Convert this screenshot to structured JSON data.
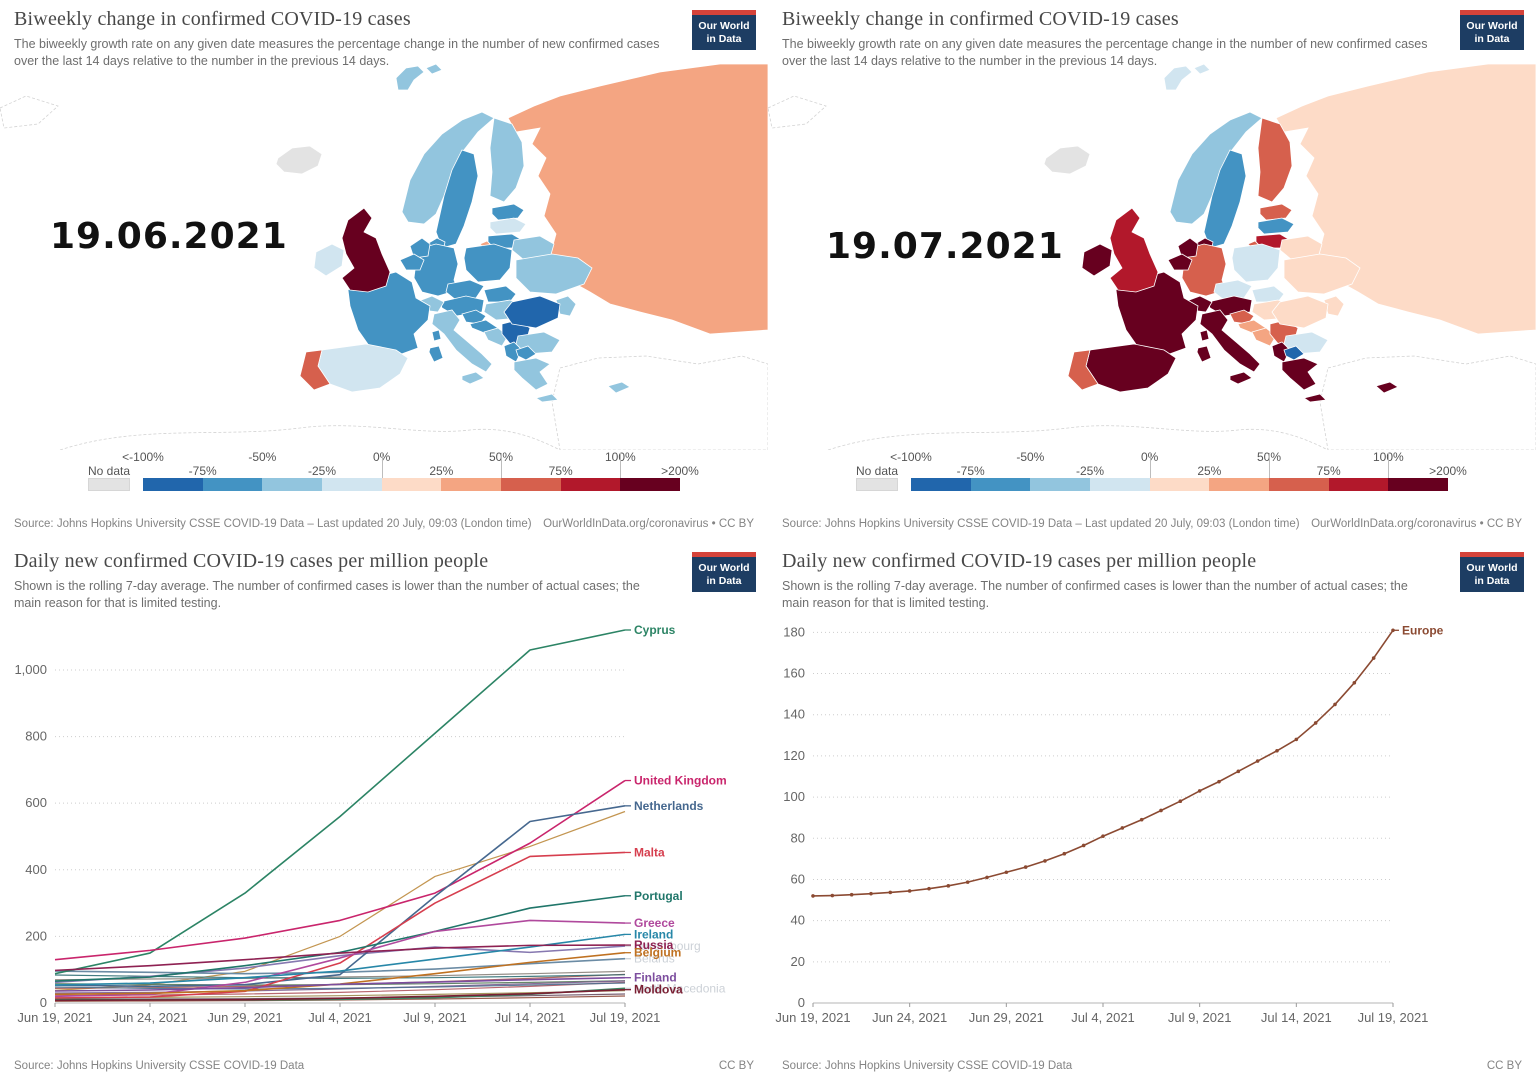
{
  "logo": {
    "line1": "Our World",
    "line2": "in Data"
  },
  "maps": {
    "title": "Biweekly change in confirmed COVID-19 cases",
    "subtitle": "The biweekly growth rate on any given date measures the percentage change in the number of new confirmed cases over the last 14 days relative to the number in the previous 14 days.",
    "source_left": "Source: Johns Hopkins University CSSE COVID-19 Data – Last updated 20 July, 09:03 (London time)",
    "source_right": "OurWorldInData.org/coronavirus • CC BY",
    "legend": {
      "no_data": "No data",
      "no_data_color": "#e3e3e3",
      "top_labels": [
        "<-100%",
        "-50%",
        "0%",
        "50%",
        "100%"
      ],
      "bottom_labels": [
        "-75%",
        "-25%",
        "25%",
        "75%",
        ">200%"
      ],
      "colors": [
        "#2166ac",
        "#4393c3",
        "#92c5de",
        "#d1e5f0",
        "#fddbc7",
        "#f4a582",
        "#d6604d",
        "#b2182b",
        "#67001f"
      ]
    }
  },
  "charts": {
    "title": "Daily new confirmed COVID-19 cases per million people",
    "subtitle": "Shown is the rolling 7-day average. The number of confirmed cases is lower than the number of actual cases; the main reason for that is limited testing.",
    "source_left": "Source: Johns Hopkins University CSSE COVID-19 Data",
    "source_right": "CC BY"
  },
  "chart_data": [
    {
      "type": "line",
      "title": "Daily new confirmed COVID-19 cases per million people",
      "x_tick_labels": [
        "Jun 19, 2021",
        "Jun 24, 2021",
        "Jun 29, 2021",
        "Jul 4, 2021",
        "Jul 9, 2021",
        "Jul 14, 2021",
        "Jul 19, 2021"
      ],
      "ylim": [
        0,
        1150
      ],
      "ytick_values": [
        0,
        200,
        400,
        600,
        800,
        1000
      ],
      "ytick_labels": [
        "0",
        "200",
        "400",
        "600",
        "800",
        "1,000"
      ],
      "grid": "dotted",
      "legend_position": "right-edge-labels",
      "plot": {
        "l": 55,
        "r": 625,
        "t": 22,
        "b": 405
      },
      "markers": false,
      "faded_label_color": "#ccd1d7",
      "series": [
        {
          "name": "Cyprus",
          "color": "#2c8465",
          "faded": false,
          "values": [
            88,
            150,
            330,
            560,
            810,
            1060,
            1120
          ]
        },
        {
          "name": "United Kingdom",
          "color": "#c9256c",
          "faded": false,
          "values": [
            130,
            158,
            195,
            248,
            330,
            480,
            668
          ]
        },
        {
          "name": "Netherlands",
          "color": "#46688f",
          "faded": false,
          "values": [
            54,
            50,
            55,
            85,
            320,
            545,
            592
          ]
        },
        {
          "name": "Malta",
          "color": "#d63e4e",
          "faded": false,
          "values": [
            15,
            18,
            35,
            120,
            300,
            440,
            452
          ]
        },
        {
          "name": "Portugal",
          "color": "#20766a",
          "faded": false,
          "values": [
            66,
            78,
            112,
            152,
            215,
            285,
            322
          ]
        },
        {
          "name": "Greece",
          "color": "#b0499d",
          "faded": false,
          "values": [
            20,
            26,
            62,
            135,
            215,
            248,
            240
          ]
        },
        {
          "name": "Ireland",
          "color": "#2787a8",
          "faded": false,
          "values": [
            54,
            60,
            76,
            96,
            132,
            168,
            206
          ]
        },
        {
          "name": "Russia",
          "color": "#8e2152",
          "faded": false,
          "values": [
            98,
            112,
            130,
            150,
            165,
            173,
            174
          ]
        },
        {
          "name": "Belgium",
          "color": "#bf7121",
          "faded": false,
          "values": [
            26,
            29,
            37,
            57,
            88,
            122,
            151
          ]
        },
        {
          "name": "Finland",
          "color": "#7c4d9e",
          "faded": false,
          "values": [
            36,
            39,
            46,
            56,
            63,
            70,
            76
          ]
        },
        {
          "name": "Moldova",
          "color": "#7a1f33",
          "faded": false,
          "values": [
            8,
            9,
            10,
            14,
            20,
            28,
            40
          ]
        },
        {
          "name": "Luxembourg",
          "color": "#8678b0",
          "faded": true,
          "values": [
            62,
            80,
            105,
            142,
            168,
            152,
            171
          ]
        },
        {
          "name": "Belarus",
          "color": "#6b8ba4",
          "faded": true,
          "values": [
            96,
            92,
            88,
            92,
            102,
            118,
            133
          ]
        },
        {
          "name": "North Macedonia",
          "color": "#3d8361",
          "faded": true,
          "values": [
            12,
            10,
            9,
            11,
            16,
            26,
            44
          ]
        }
      ],
      "background_series": [
        {
          "color": "#bd8a3d",
          "values": [
            38,
            55,
            95,
            200,
            380,
            470,
            575
          ]
        },
        {
          "color": "#88817a",
          "values": [
            70,
            72,
            74,
            78,
            82,
            88,
            95
          ]
        },
        {
          "color": "#a65b52",
          "values": [
            44,
            46,
            50,
            56,
            64,
            74,
            86
          ]
        },
        {
          "color": "#577a5a",
          "values": [
            58,
            56,
            54,
            55,
            58,
            62,
            67
          ]
        },
        {
          "color": "#7a5c8e",
          "values": [
            30,
            32,
            36,
            42,
            50,
            58,
            66
          ]
        },
        {
          "color": "#b0575f",
          "values": [
            22,
            24,
            27,
            32,
            40,
            50,
            62
          ]
        },
        {
          "color": "#4d6f8f",
          "values": [
            48,
            44,
            42,
            44,
            48,
            54,
            60
          ]
        },
        {
          "color": "#9a8a4a",
          "values": [
            16,
            17,
            19,
            22,
            26,
            31,
            37
          ]
        },
        {
          "color": "#6a4f63",
          "values": [
            12,
            12,
            13,
            15,
            18,
            22,
            27
          ]
        },
        {
          "color": "#2f6e73",
          "values": [
            84,
            80,
            76,
            74,
            76,
            80,
            85
          ]
        },
        {
          "color": "#8d4a3a",
          "values": [
            5,
            6,
            7,
            9,
            12,
            16,
            21
          ]
        }
      ]
    },
    {
      "type": "line",
      "title": "Daily new confirmed COVID-19 cases per million people",
      "x_tick_labels": [
        "Jun 19, 2021",
        "Jun 24, 2021",
        "Jun 29, 2021",
        "Jul 4, 2021",
        "Jul 9, 2021",
        "Jul 14, 2021",
        "Jul 19, 2021"
      ],
      "ylim": [
        0,
        186
      ],
      "ytick_values": [
        0,
        20,
        40,
        60,
        80,
        100,
        120,
        140,
        160,
        180
      ],
      "ytick_labels": [
        "0",
        "20",
        "40",
        "60",
        "80",
        "100",
        "120",
        "140",
        "160",
        "180"
      ],
      "grid": "dotted",
      "legend_position": "right-edge-labels",
      "plot": {
        "l": 45,
        "r": 625,
        "t": 22,
        "b": 405
      },
      "markers": true,
      "faded_label_color": "#ccd1d7",
      "series": [
        {
          "name": "Europe",
          "color": "#8b4a32",
          "faded": false,
          "values": [
            52,
            52.2,
            52.6,
            53.1,
            53.7,
            54.4,
            55.5,
            56.9,
            58.7,
            61,
            63.5,
            66,
            69,
            72.5,
            76.5,
            81,
            85,
            89,
            93.5,
            98,
            103,
            107.5,
            112.5,
            117.5,
            122.5,
            128,
            136,
            145,
            155.5,
            167.5,
            181
          ]
        }
      ],
      "background_series": []
    },
    {
      "type": "choropleth",
      "date_label": "19.06.2021",
      "fills": {
        "svalbard": "#92c5de",
        "iceland": "#e3e3e3",
        "norway": "#92c5de",
        "sweden": "#4393c3",
        "finland": "#92c5de",
        "denmark": "#4393c3",
        "uk": "#67001f",
        "ireland": "#d1e5f0",
        "netherlands": "#4393c3",
        "belgium": "#4393c3",
        "germany": "#4393c3",
        "poland": "#4393c3",
        "czechia": "#4393c3",
        "slovakia": "#4393c3",
        "austria": "#4393c3",
        "switzerland": "#92c5de",
        "france": "#4393c3",
        "spain": "#d1e5f0",
        "portugal": "#d6604d",
        "italy": "#92c5de",
        "sicily": "#92c5de",
        "sardinia": "#4393c3",
        "corsica": "#4393c3",
        "slovenia": "#4393c3",
        "croatia": "#4393c3",
        "bosnia": "#92c5de",
        "serbia": "#2166ac",
        "hungary": "#92c5de",
        "romania": "#2166ac",
        "moldova": "#92c5de",
        "bulgaria": "#92c5de",
        "greece": "#92c5de",
        "crete": "#92c5de",
        "albania": "#4393c3",
        "macedonia": "#4393c3",
        "estonia": "#4393c3",
        "latvia": "#d1e5f0",
        "lithuania": "#4393c3",
        "kaliningrad": "#f4a582",
        "belarus": "#92c5de",
        "ukraine": "#92c5de",
        "russia": "#f4a582",
        "cyprus": "#92c5de"
      }
    },
    {
      "type": "choropleth",
      "date_label": "19.07.2021",
      "fills": {
        "svalbard": "#d1e5f0",
        "iceland": "#e3e3e3",
        "norway": "#92c5de",
        "sweden": "#4393c3",
        "finland": "#d6604d",
        "denmark": "#67001f",
        "uk": "#b2182b",
        "ireland": "#67001f",
        "netherlands": "#67001f",
        "belgium": "#67001f",
        "germany": "#d6604d",
        "poland": "#d1e5f0",
        "czechia": "#d1e5f0",
        "slovakia": "#d1e5f0",
        "austria": "#67001f",
        "switzerland": "#67001f",
        "france": "#67001f",
        "spain": "#67001f",
        "portugal": "#d6604d",
        "italy": "#67001f",
        "sicily": "#67001f",
        "sardinia": "#67001f",
        "corsica": "#67001f",
        "slovenia": "#d6604d",
        "croatia": "#f4a582",
        "bosnia": "#f4a582",
        "serbia": "#d6604d",
        "hungary": "#fddbc7",
        "romania": "#fddbc7",
        "moldova": "#fddbc7",
        "bulgaria": "#d1e5f0",
        "greece": "#67001f",
        "crete": "#67001f",
        "albania": "#67001f",
        "macedonia": "#2166ac",
        "estonia": "#d6604d",
        "latvia": "#4393c3",
        "lithuania": "#b2182b",
        "kaliningrad": "#d6604d",
        "belarus": "#fddbc7",
        "ukraine": "#fddbc7",
        "russia": "#fddbc7",
        "cyprus": "#67001f"
      }
    }
  ]
}
